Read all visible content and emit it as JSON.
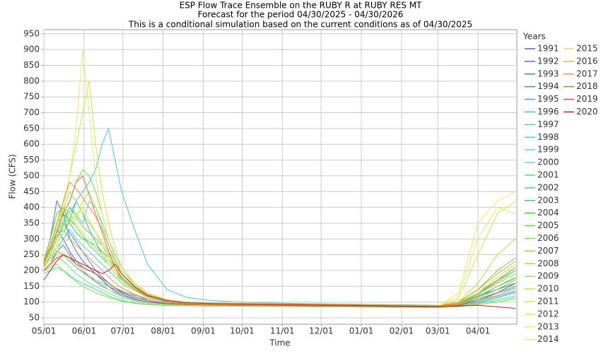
{
  "chart_data": {
    "type": "line",
    "title": "ESP Flow Trace Ensemble on the RUBY R at RUBY RES MT",
    "subtitle": "Forecast for the period 04/30/2025 - 04/30/2026",
    "note": "This is a conditional simulation based on the current conditions as of 04/30/2025",
    "x_label": "Time",
    "y_label": "Flow (CFS)",
    "legend_title": "Years",
    "grid": true,
    "xlim": [
      0,
      365
    ],
    "ylim": [
      30,
      963
    ],
    "xticks": [
      {
        "value": 0,
        "label": "05/01"
      },
      {
        "value": 31,
        "label": "06/01"
      },
      {
        "value": 61,
        "label": "07/01"
      },
      {
        "value": 92,
        "label": "08/01"
      },
      {
        "value": 123,
        "label": "09/01"
      },
      {
        "value": 153,
        "label": "10/01"
      },
      {
        "value": 184,
        "label": "11/01"
      },
      {
        "value": 214,
        "label": "12/01"
      },
      {
        "value": 245,
        "label": "01/01"
      },
      {
        "value": 276,
        "label": "02/01"
      },
      {
        "value": 304,
        "label": "03/01"
      },
      {
        "value": 335,
        "label": "04/01"
      }
    ],
    "yticks": [
      50,
      100,
      150,
      200,
      250,
      300,
      350,
      400,
      450,
      500,
      550,
      600,
      650,
      700,
      750,
      800,
      850,
      900,
      950
    ],
    "x": [
      0,
      5,
      10,
      15,
      20,
      25,
      30,
      35,
      40,
      45,
      50,
      55,
      60,
      70,
      80,
      95,
      110,
      130,
      150,
      170,
      190,
      210,
      230,
      250,
      270,
      290,
      305,
      320,
      335,
      350,
      364
    ],
    "series": [
      {
        "name": "1991",
        "color": "#5b5bd6",
        "values": [
          220,
          260,
          330,
          300,
          260,
          230,
          210,
          200,
          190,
          170,
          150,
          135,
          125,
          110,
          100,
          95,
          92,
          90,
          90,
          90,
          89,
          88,
          88,
          87,
          86,
          85,
          84,
          90,
          110,
          130,
          150
        ]
      },
      {
        "name": "1992",
        "color": "#4a6ccf",
        "values": [
          230,
          300,
          420,
          380,
          300,
          260,
          230,
          210,
          190,
          170,
          150,
          140,
          130,
          115,
          105,
          97,
          94,
          92,
          92,
          91,
          90,
          89,
          88,
          88,
          87,
          86,
          86,
          95,
          120,
          140,
          160
        ]
      },
      {
        "name": "1993",
        "color": "#3c85d9",
        "values": [
          210,
          250,
          300,
          350,
          320,
          290,
          260,
          230,
          200,
          180,
          160,
          145,
          135,
          120,
          110,
          100,
          96,
          94,
          93,
          92,
          91,
          90,
          89,
          88,
          87,
          86,
          85,
          92,
          105,
          120,
          135
        ]
      },
      {
        "name": "1994",
        "color": "#2f8fd8",
        "values": [
          200,
          220,
          260,
          280,
          250,
          220,
          200,
          180,
          165,
          150,
          140,
          130,
          120,
          108,
          100,
          94,
          92,
          91,
          90,
          90,
          89,
          88,
          88,
          87,
          86,
          85,
          85,
          88,
          100,
          115,
          130
        ]
      },
      {
        "name": "1995",
        "color": "#3aa3d8",
        "values": [
          215,
          240,
          280,
          320,
          360,
          420,
          380,
          330,
          290,
          250,
          220,
          190,
          170,
          140,
          120,
          105,
          98,
          95,
          94,
          93,
          92,
          91,
          90,
          89,
          88,
          87,
          87,
          95,
          115,
          140,
          160
        ]
      },
      {
        "name": "1996",
        "color": "#4ab3e0",
        "values": [
          230,
          270,
          310,
          330,
          300,
          280,
          260,
          240,
          220,
          200,
          180,
          160,
          145,
          125,
          110,
          100,
          96,
          94,
          93,
          92,
          91,
          90,
          89,
          88,
          87,
          86,
          86,
          90,
          105,
          125,
          145
        ]
      },
      {
        "name": "1997",
        "color": "#3fd0d0",
        "values": [
          220,
          260,
          300,
          340,
          380,
          420,
          450,
          480,
          520,
          600,
          650,
          550,
          450,
          330,
          220,
          140,
          115,
          105,
          100,
          98,
          96,
          95,
          94,
          93,
          92,
          91,
          90,
          100,
          130,
          170,
          200
        ]
      },
      {
        "name": "1998",
        "color": "#40dcc0",
        "values": [
          210,
          240,
          270,
          300,
          330,
          300,
          280,
          260,
          240,
          220,
          200,
          180,
          160,
          135,
          115,
          102,
          97,
          95,
          94,
          93,
          92,
          91,
          90,
          89,
          88,
          88,
          87,
          95,
          120,
          150,
          180
        ]
      },
      {
        "name": "1999",
        "color": "#50e0b0",
        "values": [
          225,
          270,
          320,
          360,
          400,
          380,
          350,
          420,
          400,
          350,
          300,
          250,
          210,
          160,
          125,
          105,
          99,
          96,
          95,
          94,
          93,
          92,
          91,
          90,
          89,
          88,
          88,
          96,
          125,
          160,
          190
        ]
      },
      {
        "name": "2000",
        "color": "#5ae8a0",
        "values": [
          200,
          220,
          240,
          230,
          210,
          190,
          175,
          160,
          150,
          140,
          130,
          120,
          112,
          102,
          96,
          92,
          90,
          89,
          89,
          88,
          88,
          87,
          86,
          86,
          85,
          84,
          84,
          88,
          98,
          110,
          120
        ]
      },
      {
        "name": "2001",
        "color": "#40e090",
        "values": [
          190,
          200,
          210,
          200,
          185,
          170,
          160,
          150,
          140,
          130,
          120,
          112,
          105,
          97,
          93,
          90,
          89,
          88,
          88,
          87,
          87,
          86,
          86,
          85,
          84,
          84,
          83,
          86,
          95,
          105,
          115
        ]
      },
      {
        "name": "2002",
        "color": "#30d880",
        "values": [
          220,
          280,
          350,
          380,
          360,
          340,
          310,
          280,
          260,
          240,
          220,
          190,
          170,
          140,
          118,
          103,
          97,
          95,
          94,
          93,
          92,
          91,
          90,
          89,
          88,
          88,
          87,
          94,
          115,
          140,
          170
        ]
      },
      {
        "name": "2003",
        "color": "#30d060",
        "values": [
          230,
          300,
          380,
          400,
          350,
          320,
          300,
          290,
          280,
          260,
          240,
          210,
          180,
          145,
          120,
          104,
          98,
          96,
          95,
          94,
          93,
          92,
          91,
          90,
          89,
          88,
          88,
          95,
          118,
          150,
          175
        ]
      },
      {
        "name": "2004",
        "color": "#40d040",
        "values": [
          200,
          230,
          260,
          250,
          230,
          210,
          195,
          180,
          170,
          160,
          150,
          140,
          130,
          115,
          105,
          96,
          93,
          92,
          91,
          91,
          90,
          89,
          89,
          88,
          87,
          86,
          86,
          92,
          110,
          130,
          150
        ]
      },
      {
        "name": "2005",
        "color": "#60d840",
        "values": [
          210,
          250,
          300,
          350,
          400,
          370,
          340,
          320,
          300,
          280,
          250,
          220,
          190,
          150,
          122,
          105,
          98,
          96,
          95,
          94,
          93,
          92,
          91,
          90,
          89,
          88,
          88,
          98,
          125,
          165,
          200
        ]
      },
      {
        "name": "2006",
        "color": "#70e040",
        "values": [
          220,
          260,
          320,
          380,
          420,
          480,
          520,
          500,
          450,
          380,
          300,
          240,
          200,
          155,
          125,
          106,
          99,
          96,
          95,
          94,
          93,
          92,
          91,
          90,
          89,
          88,
          88,
          100,
          140,
          190,
          230
        ]
      },
      {
        "name": "2007",
        "color": "#80e040",
        "values": [
          200,
          210,
          220,
          200,
          180,
          165,
          150,
          140,
          130,
          122,
          115,
          108,
          103,
          96,
          92,
          89,
          88,
          87,
          87,
          86,
          86,
          85,
          85,
          84,
          84,
          83,
          83,
          85,
          92,
          100,
          110
        ]
      },
      {
        "name": "2008",
        "color": "#90e040",
        "values": [
          220,
          270,
          330,
          390,
          450,
          420,
          380,
          350,
          320,
          290,
          260,
          230,
          200,
          160,
          128,
          108,
          100,
          97,
          96,
          95,
          94,
          93,
          92,
          91,
          90,
          89,
          89,
          98,
          130,
          180,
          220
        ]
      },
      {
        "name": "2009",
        "color": "#a0e040",
        "values": [
          210,
          250,
          300,
          340,
          370,
          340,
          310,
          290,
          270,
          250,
          230,
          200,
          175,
          140,
          118,
          104,
          98,
          96,
          95,
          94,
          93,
          92,
          91,
          90,
          89,
          88,
          88,
          96,
          125,
          160,
          190
        ]
      },
      {
        "name": "2010",
        "color": "#b0e840",
        "values": [
          230,
          280,
          350,
          400,
          380,
          360,
          420,
          450,
          400,
          340,
          280,
          230,
          190,
          150,
          122,
          105,
          99,
          96,
          95,
          94,
          93,
          92,
          91,
          90,
          89,
          88,
          88,
          100,
          160,
          250,
          300
        ]
      },
      {
        "name": "2011",
        "color": "#c8ec40",
        "values": [
          220,
          260,
          330,
          400,
          500,
          600,
          700,
          800,
          600,
          450,
          350,
          270,
          210,
          160,
          125,
          106,
          99,
          96,
          95,
          94,
          93,
          92,
          91,
          90,
          89,
          88,
          88,
          110,
          250,
          380,
          420
        ]
      },
      {
        "name": "2012",
        "color": "#d8f040",
        "values": [
          210,
          240,
          280,
          320,
          350,
          380,
          400,
          360,
          320,
          280,
          240,
          200,
          170,
          138,
          116,
          103,
          97,
          95,
          94,
          93,
          92,
          91,
          90,
          89,
          88,
          88,
          87,
          97,
          130,
          180,
          220
        ]
      },
      {
        "name": "2013",
        "color": "#e0f060",
        "values": [
          200,
          230,
          280,
          330,
          380,
          350,
          320,
          300,
          280,
          250,
          220,
          190,
          165,
          135,
          115,
          102,
          97,
          95,
          94,
          93,
          92,
          91,
          90,
          89,
          88,
          88,
          87,
          120,
          300,
          400,
          380
        ]
      },
      {
        "name": "2014",
        "color": "#e8e870",
        "values": [
          220,
          270,
          340,
          420,
          500,
          650,
          900,
          700,
          500,
          380,
          300,
          240,
          200,
          155,
          124,
          106,
          99,
          96,
          95,
          94,
          93,
          92,
          91,
          90,
          89,
          88,
          88,
          130,
          350,
          420,
          450
        ]
      },
      {
        "name": "2015",
        "color": "#f0d080",
        "values": [
          200,
          220,
          250,
          260,
          240,
          220,
          200,
          185,
          170,
          155,
          140,
          128,
          118,
          105,
          97,
          92,
          90,
          89,
          89,
          88,
          88,
          87,
          87,
          86,
          86,
          85,
          85,
          90,
          105,
          125,
          140
        ]
      },
      {
        "name": "2016",
        "color": "#f0b060",
        "values": [
          210,
          240,
          270,
          290,
          300,
          280,
          260,
          240,
          220,
          200,
          180,
          160,
          145,
          122,
          106,
          96,
          93,
          92,
          91,
          91,
          90,
          89,
          89,
          88,
          87,
          86,
          86,
          92,
          115,
          150,
          180
        ]
      },
      {
        "name": "2017",
        "color": "#f09040",
        "values": [
          230,
          280,
          350,
          420,
          480,
          460,
          430,
          400,
          370,
          330,
          280,
          230,
          190,
          148,
          120,
          104,
          98,
          96,
          95,
          94,
          93,
          92,
          91,
          90,
          89,
          88,
          88,
          100,
          140,
          200,
          240
        ]
      },
      {
        "name": "2018",
        "color": "#e87030",
        "values": [
          220,
          270,
          320,
          380,
          420,
          480,
          500,
          440,
          380,
          320,
          260,
          210,
          175,
          140,
          117,
          103,
          97,
          95,
          94,
          93,
          92,
          91,
          90,
          89,
          88,
          87,
          87,
          95,
          125,
          170,
          210
        ]
      },
      {
        "name": "2019",
        "color": "#e04a30",
        "values": [
          200,
          220,
          240,
          250,
          240,
          220,
          210,
          200,
          190,
          175,
          160,
          145,
          132,
          115,
          104,
          95,
          92,
          91,
          90,
          90,
          89,
          88,
          88,
          87,
          86,
          85,
          85,
          90,
          105,
          130,
          160
        ]
      },
      {
        "name": "2020",
        "color": "#d02020",
        "values": [
          170,
          200,
          230,
          250,
          240,
          230,
          220,
          210,
          200,
          190,
          200,
          220,
          190,
          150,
          122,
          105,
          98,
          95,
          94,
          93,
          92,
          91,
          90,
          89,
          88,
          87,
          86,
          88,
          90,
          85,
          80
        ]
      }
    ]
  }
}
